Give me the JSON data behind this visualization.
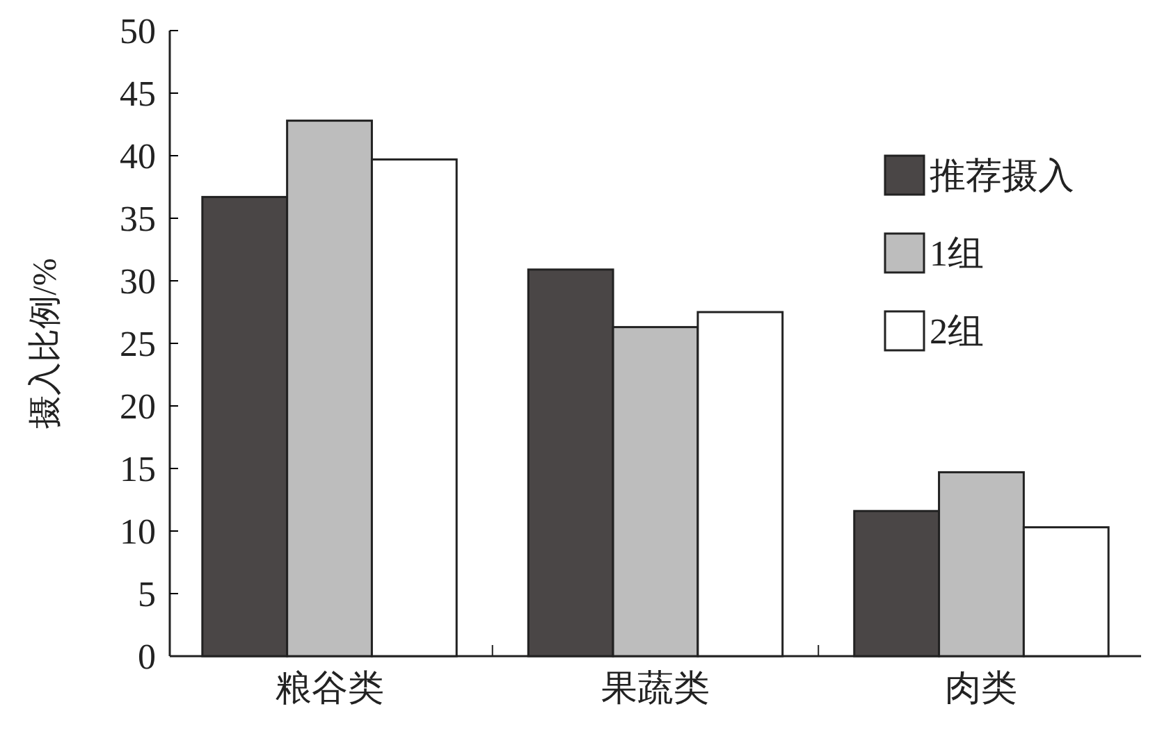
{
  "chart_data": {
    "type": "bar",
    "ylabel": "摄入比例/%",
    "categories": [
      "粮谷类",
      "果蔬类",
      "肉类"
    ],
    "series": [
      {
        "name": "推荐摄入",
        "color": "#4a4646",
        "values": [
          36.7,
          30.9,
          11.6
        ]
      },
      {
        "name": "1组",
        "color": "#bdbdbd",
        "values": [
          42.8,
          26.3,
          14.7
        ]
      },
      {
        "name": "2组",
        "color": "#ffffff",
        "values": [
          39.7,
          27.5,
          10.3
        ]
      }
    ],
    "ylim": [
      0,
      50
    ],
    "yticks": [
      0,
      5,
      10,
      15,
      20,
      25,
      30,
      35,
      40,
      45,
      50
    ],
    "grid": false,
    "legend": "top right"
  }
}
